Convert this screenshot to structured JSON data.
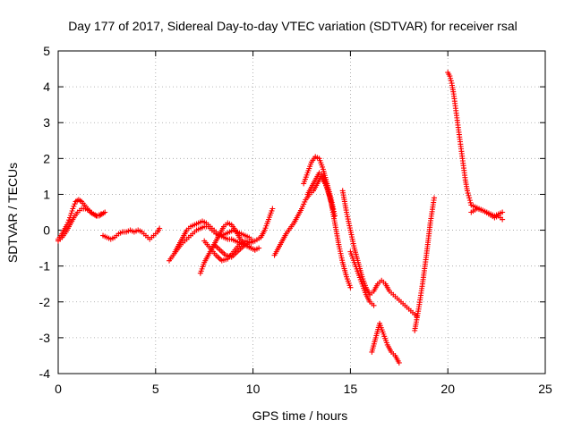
{
  "chart_data": {
    "type": "scatter",
    "title": "Day 177 of 2017, Sidereal Day-to-day VTEC variation (SDTVAR) for receiver rsal",
    "xlabel": "GPS time / hours",
    "ylabel": "SDTVAR / TECUs",
    "xlim": [
      0,
      25
    ],
    "ylim": [
      -4,
      5
    ],
    "xticks": [
      "0",
      "5",
      "10",
      "15",
      "20",
      "25"
    ],
    "yticks": [
      "-4",
      "-3",
      "-2",
      "-1",
      "0",
      "1",
      "2",
      "3",
      "4",
      "5"
    ],
    "grid": true,
    "marker": "plus",
    "series": [
      {
        "name": "rsal",
        "color": "#ff0000",
        "segments": [
          {
            "x": [
              0.0,
              0.15,
              0.3,
              0.45,
              0.6,
              0.75,
              0.9,
              1.05,
              1.2,
              1.35,
              1.5,
              1.65,
              1.8,
              1.95,
              2.1,
              2.25,
              2.4
            ],
            "y": [
              -0.25,
              -0.15,
              0.0,
              0.15,
              0.35,
              0.6,
              0.8,
              0.85,
              0.8,
              0.7,
              0.6,
              0.5,
              0.45,
              0.4,
              0.4,
              0.45,
              0.5
            ]
          },
          {
            "x": [
              0.0,
              0.2,
              0.4,
              0.6,
              0.8,
              1.0,
              1.2,
              1.4,
              1.6,
              1.8,
              2.0,
              2.2
            ],
            "y": [
              -0.3,
              -0.2,
              -0.05,
              0.15,
              0.35,
              0.5,
              0.6,
              0.6,
              0.55,
              0.45,
              0.4,
              0.45
            ]
          },
          {
            "x": [
              2.3,
              2.5,
              2.7,
              2.9,
              3.1,
              3.3,
              3.5,
              3.7,
              3.9,
              4.1,
              4.3,
              4.5,
              4.7,
              4.9,
              5.1,
              5.2
            ],
            "y": [
              -0.15,
              -0.2,
              -0.25,
              -0.2,
              -0.1,
              -0.05,
              -0.05,
              0.0,
              -0.05,
              0.0,
              -0.05,
              -0.15,
              -0.25,
              -0.15,
              -0.05,
              0.05
            ]
          },
          {
            "x": [
              5.7,
              5.9,
              6.1,
              6.3,
              6.5,
              6.7,
              6.9,
              7.1,
              7.3,
              7.5,
              7.7,
              7.9,
              8.1,
              8.3,
              8.5,
              8.7,
              8.9,
              9.1,
              9.3,
              9.5,
              9.7,
              9.9,
              10.1,
              10.3
            ],
            "y": [
              -0.85,
              -0.7,
              -0.55,
              -0.4,
              -0.3,
              -0.2,
              -0.1,
              0.0,
              0.05,
              0.1,
              0.1,
              0.0,
              -0.1,
              -0.15,
              -0.2,
              -0.25,
              -0.25,
              -0.3,
              -0.35,
              -0.4,
              -0.45,
              -0.5,
              -0.55,
              -0.5
            ]
          },
          {
            "x": [
              6.0,
              6.2,
              6.4,
              6.6,
              6.8,
              7.0,
              7.2,
              7.4,
              7.6,
              7.8,
              8.0,
              8.2,
              8.4,
              8.6,
              8.8,
              9.0,
              9.2,
              9.4,
              9.6,
              9.8,
              10.0
            ],
            "y": [
              -0.6,
              -0.4,
              -0.2,
              0.0,
              0.1,
              0.15,
              0.2,
              0.25,
              0.2,
              0.1,
              0.0,
              -0.1,
              -0.15,
              -0.1,
              -0.05,
              0.0,
              -0.05,
              -0.1,
              -0.15,
              -0.2,
              -0.3
            ]
          },
          {
            "x": [
              7.3,
              7.5,
              7.7,
              7.9,
              8.1,
              8.3,
              8.5,
              8.7,
              8.9,
              9.1,
              9.3,
              9.5,
              9.7,
              9.9,
              10.1
            ],
            "y": [
              -1.2,
              -0.9,
              -0.7,
              -0.5,
              -0.3,
              -0.1,
              0.1,
              0.2,
              0.15,
              0.0,
              -0.2,
              -0.35,
              -0.4,
              -0.5,
              -0.55
            ]
          },
          {
            "x": [
              8.0,
              8.3,
              8.6,
              8.9,
              9.2,
              9.5,
              9.8,
              10.1,
              10.4,
              10.6,
              10.8,
              11.0
            ],
            "y": [
              -0.4,
              -0.55,
              -0.7,
              -0.75,
              -0.6,
              -0.45,
              -0.35,
              -0.3,
              -0.2,
              0.0,
              0.3,
              0.6
            ]
          },
          {
            "x": [
              7.5,
              7.8,
              8.1,
              8.4,
              8.7,
              9.0,
              9.3,
              9.6,
              9.9
            ],
            "y": [
              -0.3,
              -0.5,
              -0.7,
              -0.85,
              -0.8,
              -0.6,
              -0.4,
              -0.3,
              -0.35
            ]
          },
          {
            "x": [
              11.1,
              11.3,
              11.5,
              11.7,
              11.9,
              12.1,
              12.3,
              12.5,
              12.7,
              12.9,
              13.1,
              13.3,
              13.5,
              13.7,
              13.9,
              14.1
            ],
            "y": [
              -0.7,
              -0.5,
              -0.3,
              -0.1,
              0.05,
              0.2,
              0.4,
              0.6,
              0.85,
              1.0,
              1.1,
              1.3,
              1.5,
              1.3,
              1.0,
              0.6
            ]
          },
          {
            "x": [
              12.6,
              12.8,
              13.0,
              13.2,
              13.4,
              13.6,
              13.8,
              14.0,
              14.2
            ],
            "y": [
              1.3,
              1.6,
              1.9,
              2.05,
              2.0,
              1.7,
              1.3,
              0.9,
              0.4
            ]
          },
          {
            "x": [
              12.8,
              13.0,
              13.2,
              13.4,
              13.6,
              13.8,
              14.0,
              14.2,
              14.4,
              14.6,
              14.8,
              15.0
            ],
            "y": [
              1.0,
              1.2,
              1.4,
              1.6,
              1.5,
              1.2,
              0.8,
              0.2,
              -0.4,
              -0.9,
              -1.3,
              -1.6
            ]
          },
          {
            "x": [
              14.6,
              14.8,
              15.0,
              15.2,
              15.4,
              15.6,
              15.8,
              16.0,
              16.2,
              16.4,
              16.6,
              16.8,
              17.0,
              17.2,
              17.4,
              17.6,
              17.8,
              18.0,
              18.2,
              18.4
            ],
            "y": [
              1.1,
              0.5,
              0.0,
              -0.5,
              -0.9,
              -1.3,
              -1.6,
              -1.8,
              -1.7,
              -1.5,
              -1.4,
              -1.5,
              -1.7,
              -1.8,
              -1.9,
              -2.0,
              -2.1,
              -2.2,
              -2.3,
              -2.4
            ]
          },
          {
            "x": [
              15.0,
              15.2,
              15.4,
              15.6,
              15.8,
              16.0,
              16.2
            ],
            "y": [
              -0.6,
              -0.9,
              -1.2,
              -1.5,
              -1.8,
              -2.0,
              -2.1
            ]
          },
          {
            "x": [
              16.1,
              16.3,
              16.5,
              16.7,
              16.9,
              17.1,
              17.3,
              17.5
            ],
            "y": [
              -3.4,
              -3.0,
              -2.6,
              -2.9,
              -3.2,
              -3.4,
              -3.5,
              -3.7
            ]
          },
          {
            "x": [
              18.3,
              18.5,
              18.7,
              18.9,
              19.1,
              19.3
            ],
            "y": [
              -2.8,
              -2.2,
              -1.5,
              -0.7,
              0.2,
              0.9
            ]
          },
          {
            "x": [
              20.0,
              20.1,
              20.2,
              20.3,
              20.4,
              20.5,
              20.6,
              20.7,
              20.8,
              20.9,
              21.0,
              21.1,
              21.2,
              21.4,
              21.6,
              21.8,
              22.0,
              22.2,
              22.4,
              22.6,
              22.8
            ],
            "y": [
              4.4,
              4.3,
              4.1,
              3.8,
              3.4,
              3.0,
              2.6,
              2.2,
              1.8,
              1.4,
              1.1,
              0.9,
              0.7,
              0.65,
              0.6,
              0.55,
              0.5,
              0.45,
              0.4,
              0.45,
              0.5
            ]
          },
          {
            "x": [
              21.2,
              21.5,
              21.8,
              22.1,
              22.4,
              22.6,
              22.8
            ],
            "y": [
              0.5,
              0.6,
              0.55,
              0.45,
              0.35,
              0.4,
              0.3
            ]
          }
        ]
      }
    ]
  }
}
